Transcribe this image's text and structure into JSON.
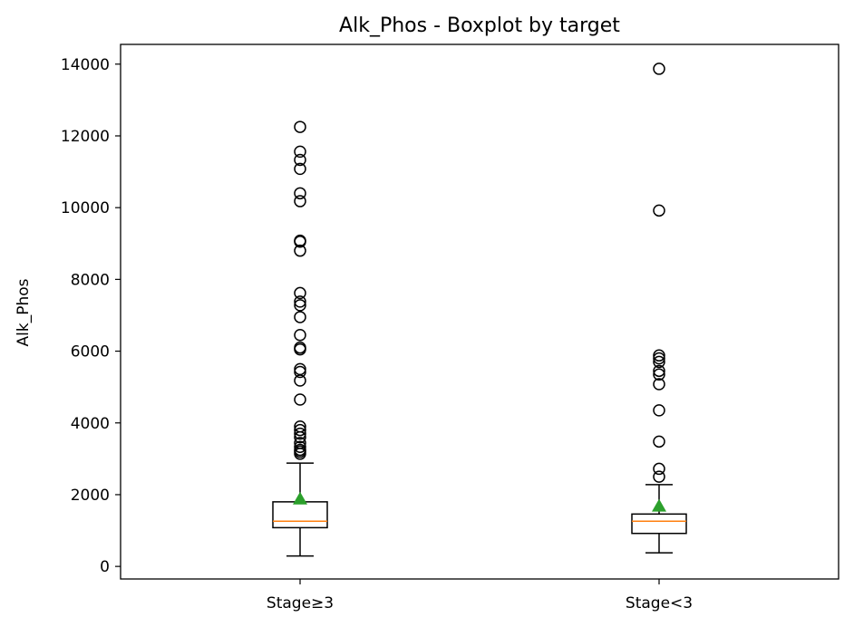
{
  "chart_data": {
    "type": "boxplot",
    "title": "Alk_Phos - Boxplot by target",
    "xlabel": "",
    "ylabel": "Alk_Phos",
    "ylim": [
      -350,
      14550
    ],
    "yticks": [
      0,
      2000,
      4000,
      6000,
      8000,
      10000,
      12000,
      14000
    ],
    "grid": false,
    "legend": "none",
    "colors": {
      "box": "#000000",
      "median": "#ff7f0e",
      "mean": "#2ca02c",
      "flier": "#000000"
    },
    "categories": [
      "Stage≥3",
      "Stage<3"
    ],
    "boxes": [
      {
        "category": "Stage≥3",
        "whisker_low": 290,
        "q1": 1080,
        "median": 1260,
        "q3": 1800,
        "whisker_high": 2880,
        "mean": 1880,
        "outliers": [
          3140,
          3200,
          3250,
          3330,
          3440,
          3600,
          3700,
          3800,
          3900,
          4650,
          5180,
          5420,
          5500,
          6050,
          6100,
          6450,
          6950,
          7280,
          7380,
          7620,
          8800,
          9050,
          9080,
          10180,
          10400,
          11080,
          11330,
          11560,
          12250
        ]
      },
      {
        "category": "Stage<3",
        "whisker_low": 380,
        "q1": 920,
        "median": 1260,
        "q3": 1460,
        "whisker_high": 2280,
        "mean": 1680,
        "outliers": [
          2500,
          2720,
          3480,
          4350,
          5080,
          5350,
          5450,
          5700,
          5800,
          5880,
          9920,
          13870
        ]
      }
    ]
  }
}
